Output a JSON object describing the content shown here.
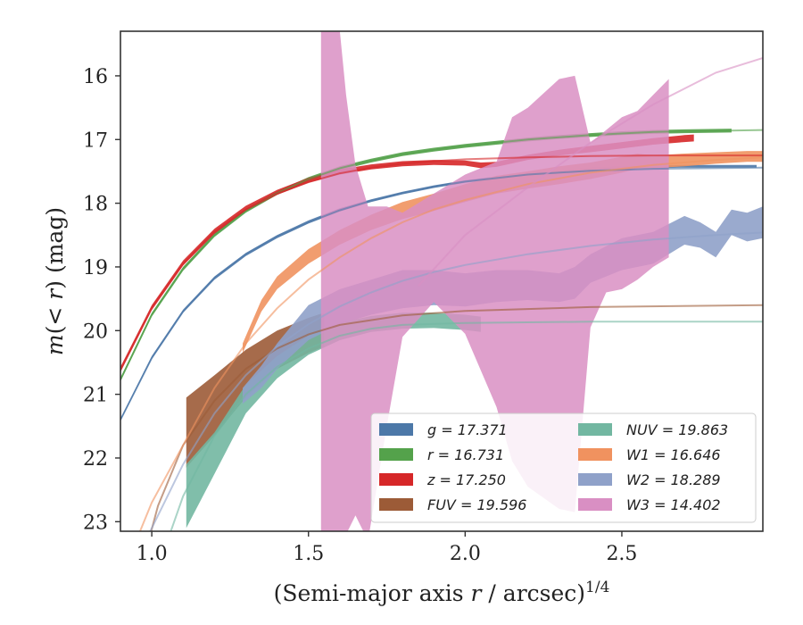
{
  "chart_data": {
    "type": "area",
    "xlabel": "(Semi-major axis r / arcsec)^1/4",
    "ylabel": "m(< r) (mag)",
    "xlim": [
      0.9,
      2.95
    ],
    "ylim": [
      23.15,
      15.3
    ],
    "y_inverted": true,
    "xticks": [
      1.0,
      1.5,
      2.0,
      2.5
    ],
    "xtick_labels": [
      "1.0",
      "1.5",
      "2.0",
      "2.5"
    ],
    "yticks": [
      16,
      17,
      18,
      19,
      20,
      21,
      22,
      23
    ],
    "ytick_labels": [
      "16",
      "17",
      "18",
      "19",
      "20",
      "21",
      "22",
      "23"
    ],
    "legend_position": "lower-right",
    "series": [
      {
        "name": "g = 17.371",
        "color": "#4c78a8",
        "band": [
          [
            0.9,
            21.42,
            21.38
          ],
          [
            1.0,
            20.45,
            20.4
          ],
          [
            1.1,
            19.72,
            19.67
          ],
          [
            1.2,
            19.2,
            19.15
          ],
          [
            1.3,
            18.83,
            18.78
          ],
          [
            1.4,
            18.55,
            18.5
          ],
          [
            1.5,
            18.32,
            18.27
          ],
          [
            1.6,
            18.13,
            18.08
          ],
          [
            1.7,
            17.98,
            17.94
          ],
          [
            1.8,
            17.86,
            17.82
          ],
          [
            1.9,
            17.76,
            17.72
          ],
          [
            2.0,
            17.68,
            17.64
          ],
          [
            2.1,
            17.62,
            17.58
          ],
          [
            2.2,
            17.56,
            17.52
          ],
          [
            2.3,
            17.52,
            17.48
          ],
          [
            2.4,
            17.48,
            17.44
          ],
          [
            2.5,
            17.46,
            17.42
          ],
          [
            2.6,
            17.45,
            17.41
          ],
          [
            2.7,
            17.44,
            17.4
          ],
          [
            2.8,
            17.44,
            17.4
          ],
          [
            2.93,
            17.44,
            17.4
          ]
        ],
        "model": [
          [
            0.9,
            21.4
          ],
          [
            1.0,
            20.43
          ],
          [
            1.1,
            19.7
          ],
          [
            1.2,
            19.17
          ],
          [
            1.3,
            18.8
          ],
          [
            1.4,
            18.52
          ],
          [
            1.5,
            18.3
          ],
          [
            1.6,
            18.11
          ],
          [
            1.7,
            17.96
          ],
          [
            1.8,
            17.84
          ],
          [
            1.9,
            17.74
          ],
          [
            2.0,
            17.66
          ],
          [
            2.2,
            17.55
          ],
          [
            2.4,
            17.49
          ],
          [
            2.6,
            17.46
          ],
          [
            2.95,
            17.44
          ]
        ]
      },
      {
        "name": "r = 16.731",
        "color": "#54a24b",
        "band": [
          [
            0.9,
            20.8,
            20.74
          ],
          [
            1.0,
            19.78,
            19.72
          ],
          [
            1.1,
            19.06,
            19.0
          ],
          [
            1.2,
            18.53,
            18.47
          ],
          [
            1.3,
            18.15,
            18.09
          ],
          [
            1.4,
            17.87,
            17.81
          ],
          [
            1.5,
            17.65,
            17.59
          ],
          [
            1.6,
            17.48,
            17.42
          ],
          [
            1.7,
            17.36,
            17.3
          ],
          [
            1.8,
            17.26,
            17.2
          ],
          [
            1.9,
            17.19,
            17.13
          ],
          [
            2.0,
            17.13,
            17.07
          ],
          [
            2.1,
            17.08,
            17.02
          ],
          [
            2.2,
            17.03,
            16.97
          ],
          [
            2.3,
            16.99,
            16.93
          ],
          [
            2.4,
            16.96,
            16.9
          ],
          [
            2.5,
            16.93,
            16.87
          ],
          [
            2.6,
            16.91,
            16.85
          ],
          [
            2.7,
            16.9,
            16.84
          ],
          [
            2.85,
            16.89,
            16.83
          ]
        ],
        "model": [
          [
            0.9,
            20.77
          ],
          [
            1.0,
            19.75
          ],
          [
            1.1,
            19.03
          ],
          [
            1.2,
            18.5
          ],
          [
            1.3,
            18.12
          ],
          [
            1.4,
            17.84
          ],
          [
            1.5,
            17.62
          ],
          [
            1.6,
            17.45
          ],
          [
            1.7,
            17.33
          ],
          [
            1.8,
            17.23
          ],
          [
            1.9,
            17.16
          ],
          [
            2.0,
            17.1
          ],
          [
            2.2,
            17.0
          ],
          [
            2.4,
            16.93
          ],
          [
            2.6,
            16.88
          ],
          [
            2.95,
            16.85
          ]
        ]
      },
      {
        "name": "z = 17.250",
        "color": "#d62728",
        "band": [
          [
            0.9,
            20.65,
            20.57
          ],
          [
            1.0,
            19.68,
            19.6
          ],
          [
            1.1,
            18.98,
            18.9
          ],
          [
            1.2,
            18.48,
            18.4
          ],
          [
            1.3,
            18.12,
            18.04
          ],
          [
            1.4,
            17.87,
            17.79
          ],
          [
            1.5,
            17.68,
            17.6
          ],
          [
            1.6,
            17.55,
            17.47
          ],
          [
            1.7,
            17.47,
            17.39
          ],
          [
            1.8,
            17.42,
            17.34
          ],
          [
            1.9,
            17.4,
            17.32
          ],
          [
            2.0,
            17.41,
            17.33
          ],
          [
            2.05,
            17.45,
            17.36
          ],
          [
            2.1,
            17.43,
            17.35
          ],
          [
            2.2,
            17.32,
            17.24
          ],
          [
            2.3,
            17.25,
            17.16
          ],
          [
            2.4,
            17.2,
            17.1
          ],
          [
            2.5,
            17.14,
            17.04
          ],
          [
            2.6,
            17.08,
            16.98
          ],
          [
            2.7,
            17.04,
            16.93
          ],
          [
            2.73,
            17.03,
            16.92
          ]
        ],
        "model": [
          [
            0.9,
            20.62
          ],
          [
            1.0,
            19.64
          ],
          [
            1.1,
            18.95
          ],
          [
            1.2,
            18.45
          ],
          [
            1.3,
            18.1
          ],
          [
            1.4,
            17.85
          ],
          [
            1.5,
            17.67
          ],
          [
            1.6,
            17.53
          ],
          [
            1.7,
            17.44
          ],
          [
            1.8,
            17.38
          ],
          [
            1.9,
            17.34
          ],
          [
            2.0,
            17.31
          ],
          [
            2.2,
            17.28
          ],
          [
            2.4,
            17.26
          ],
          [
            2.6,
            17.25
          ],
          [
            2.95,
            17.25
          ]
        ]
      },
      {
        "name": "FUV = 19.596",
        "color": "#9c5b37",
        "band": [
          [
            1.11,
            22.15,
            21.05
          ],
          [
            1.2,
            21.65,
            20.7
          ],
          [
            1.3,
            21.05,
            20.3
          ],
          [
            1.4,
            20.6,
            20.0
          ],
          [
            1.5,
            20.35,
            19.8
          ],
          [
            1.55,
            20.25,
            19.72
          ]
        ],
        "model": [
          [
            0.99,
            23.3
          ],
          [
            1.02,
            22.75
          ],
          [
            1.1,
            21.8
          ],
          [
            1.2,
            21.1
          ],
          [
            1.3,
            20.6
          ],
          [
            1.4,
            20.28
          ],
          [
            1.5,
            20.06
          ],
          [
            1.6,
            19.91
          ],
          [
            1.8,
            19.76
          ],
          [
            2.0,
            19.69
          ],
          [
            2.4,
            19.63
          ],
          [
            2.95,
            19.6
          ]
        ]
      },
      {
        "name": "NUV = 19.863",
        "color": "#72b7a1",
        "band": [
          [
            1.11,
            23.1,
            22.1
          ],
          [
            1.2,
            22.25,
            21.6
          ],
          [
            1.3,
            21.3,
            20.85
          ],
          [
            1.4,
            20.75,
            20.4
          ],
          [
            1.5,
            20.38,
            20.08
          ],
          [
            1.6,
            20.15,
            19.88
          ],
          [
            1.7,
            20.02,
            19.77
          ],
          [
            1.8,
            19.97,
            19.72
          ],
          [
            1.9,
            19.96,
            19.72
          ],
          [
            2.0,
            19.99,
            19.75
          ],
          [
            2.05,
            20.02,
            19.78
          ]
        ],
        "model": [
          [
            1.05,
            23.3
          ],
          [
            1.1,
            22.6
          ],
          [
            1.2,
            21.65
          ],
          [
            1.3,
            21.0
          ],
          [
            1.4,
            20.57
          ],
          [
            1.5,
            20.28
          ],
          [
            1.6,
            20.08
          ],
          [
            1.7,
            19.97
          ],
          [
            1.8,
            19.91
          ],
          [
            2.0,
            19.88
          ],
          [
            2.4,
            19.86
          ],
          [
            2.95,
            19.86
          ]
        ]
      },
      {
        "name": "W1 = 16.646",
        "color": "#f0925f",
        "band": [
          [
            1.29,
            20.35,
            20.2
          ],
          [
            1.35,
            19.7,
            19.52
          ],
          [
            1.4,
            19.35,
            19.15
          ],
          [
            1.5,
            18.95,
            18.72
          ],
          [
            1.6,
            18.65,
            18.42
          ],
          [
            1.7,
            18.42,
            18.18
          ],
          [
            1.8,
            18.25,
            17.98
          ],
          [
            1.9,
            18.12,
            17.85
          ],
          [
            2.0,
            17.98,
            17.7
          ],
          [
            2.1,
            17.85,
            17.57
          ],
          [
            2.2,
            17.77,
            17.5
          ],
          [
            2.3,
            17.7,
            17.42
          ],
          [
            2.4,
            17.62,
            17.36
          ],
          [
            2.5,
            17.52,
            17.27
          ],
          [
            2.55,
            17.46,
            17.22
          ],
          [
            2.6,
            17.45,
            17.25
          ],
          [
            2.7,
            17.42,
            17.22
          ],
          [
            2.8,
            17.38,
            17.2
          ],
          [
            2.9,
            17.35,
            17.18
          ],
          [
            2.95,
            17.35,
            17.18
          ]
        ],
        "model": [
          [
            0.95,
            23.3
          ],
          [
            1.0,
            22.7
          ],
          [
            1.1,
            21.8
          ],
          [
            1.2,
            20.9
          ],
          [
            1.3,
            20.2
          ],
          [
            1.4,
            19.65
          ],
          [
            1.5,
            19.2
          ],
          [
            1.6,
            18.85
          ],
          [
            1.7,
            18.55
          ],
          [
            1.8,
            18.3
          ],
          [
            1.9,
            18.1
          ],
          [
            2.0,
            17.95
          ],
          [
            2.2,
            17.7
          ],
          [
            2.4,
            17.52
          ],
          [
            2.6,
            17.4
          ],
          [
            2.8,
            17.32
          ],
          [
            2.95,
            17.28
          ]
        ]
      },
      {
        "name": "W2 = 18.289",
        "color": "#8fa1c9",
        "band": [
          [
            1.29,
            21.15,
            20.9
          ],
          [
            1.35,
            20.9,
            20.55
          ],
          [
            1.4,
            20.6,
            20.2
          ],
          [
            1.5,
            20.15,
            19.6
          ],
          [
            1.6,
            19.9,
            19.35
          ],
          [
            1.7,
            19.75,
            19.2
          ],
          [
            1.8,
            19.65,
            19.05
          ],
          [
            1.9,
            19.6,
            19.05
          ],
          [
            2.0,
            19.62,
            19.1
          ],
          [
            2.1,
            19.55,
            19.05
          ],
          [
            2.2,
            19.52,
            19.05
          ],
          [
            2.3,
            19.55,
            19.1
          ],
          [
            2.35,
            19.5,
            19.0
          ],
          [
            2.4,
            19.25,
            18.8
          ],
          [
            2.5,
            19.05,
            18.55
          ],
          [
            2.6,
            18.95,
            18.45
          ],
          [
            2.7,
            18.65,
            18.2
          ],
          [
            2.75,
            18.7,
            18.3
          ],
          [
            2.8,
            18.85,
            18.45
          ],
          [
            2.85,
            18.5,
            18.1
          ],
          [
            2.9,
            18.6,
            18.15
          ],
          [
            2.95,
            18.55,
            18.05
          ]
        ],
        "model": [
          [
            0.98,
            23.3
          ],
          [
            1.05,
            22.6
          ],
          [
            1.1,
            22.1
          ],
          [
            1.2,
            21.3
          ],
          [
            1.3,
            20.7
          ],
          [
            1.4,
            20.25
          ],
          [
            1.5,
            19.9
          ],
          [
            1.6,
            19.62
          ],
          [
            1.7,
            19.4
          ],
          [
            1.8,
            19.22
          ],
          [
            1.9,
            19.08
          ],
          [
            2.0,
            18.97
          ],
          [
            2.2,
            18.8
          ],
          [
            2.4,
            18.67
          ],
          [
            2.6,
            18.57
          ],
          [
            2.8,
            18.5
          ],
          [
            2.95,
            18.46
          ]
        ]
      },
      {
        "name": "W3 = 14.402",
        "color": "#d98fc3",
        "band": [
          [
            1.54,
            23.3,
            15.3
          ],
          [
            1.6,
            23.3,
            15.3
          ],
          [
            1.62,
            23.2,
            16.3
          ],
          [
            1.65,
            22.9,
            17.4
          ],
          [
            1.69,
            23.3,
            18.05
          ],
          [
            1.75,
            21.5,
            18.05
          ],
          [
            1.8,
            20.1,
            18.15
          ],
          [
            1.9,
            19.55,
            17.85
          ],
          [
            2.0,
            20.05,
            17.55
          ],
          [
            2.1,
            21.2,
            17.35
          ],
          [
            2.15,
            22.05,
            16.65
          ],
          [
            2.2,
            22.45,
            16.5
          ],
          [
            2.3,
            22.8,
            16.05
          ],
          [
            2.35,
            22.85,
            16.0
          ],
          [
            2.4,
            19.95,
            17.05
          ],
          [
            2.45,
            19.4,
            16.85
          ],
          [
            2.5,
            19.35,
            16.65
          ],
          [
            2.55,
            19.2,
            16.55
          ],
          [
            2.6,
            19.0,
            16.3
          ],
          [
            2.65,
            18.85,
            16.05
          ]
        ],
        "model": [
          [
            1.85,
            19.3
          ],
          [
            2.0,
            18.5
          ],
          [
            2.2,
            17.75
          ],
          [
            2.4,
            17.05
          ],
          [
            2.6,
            16.45
          ],
          [
            2.8,
            15.95
          ],
          [
            2.95,
            15.72
          ]
        ]
      }
    ]
  }
}
